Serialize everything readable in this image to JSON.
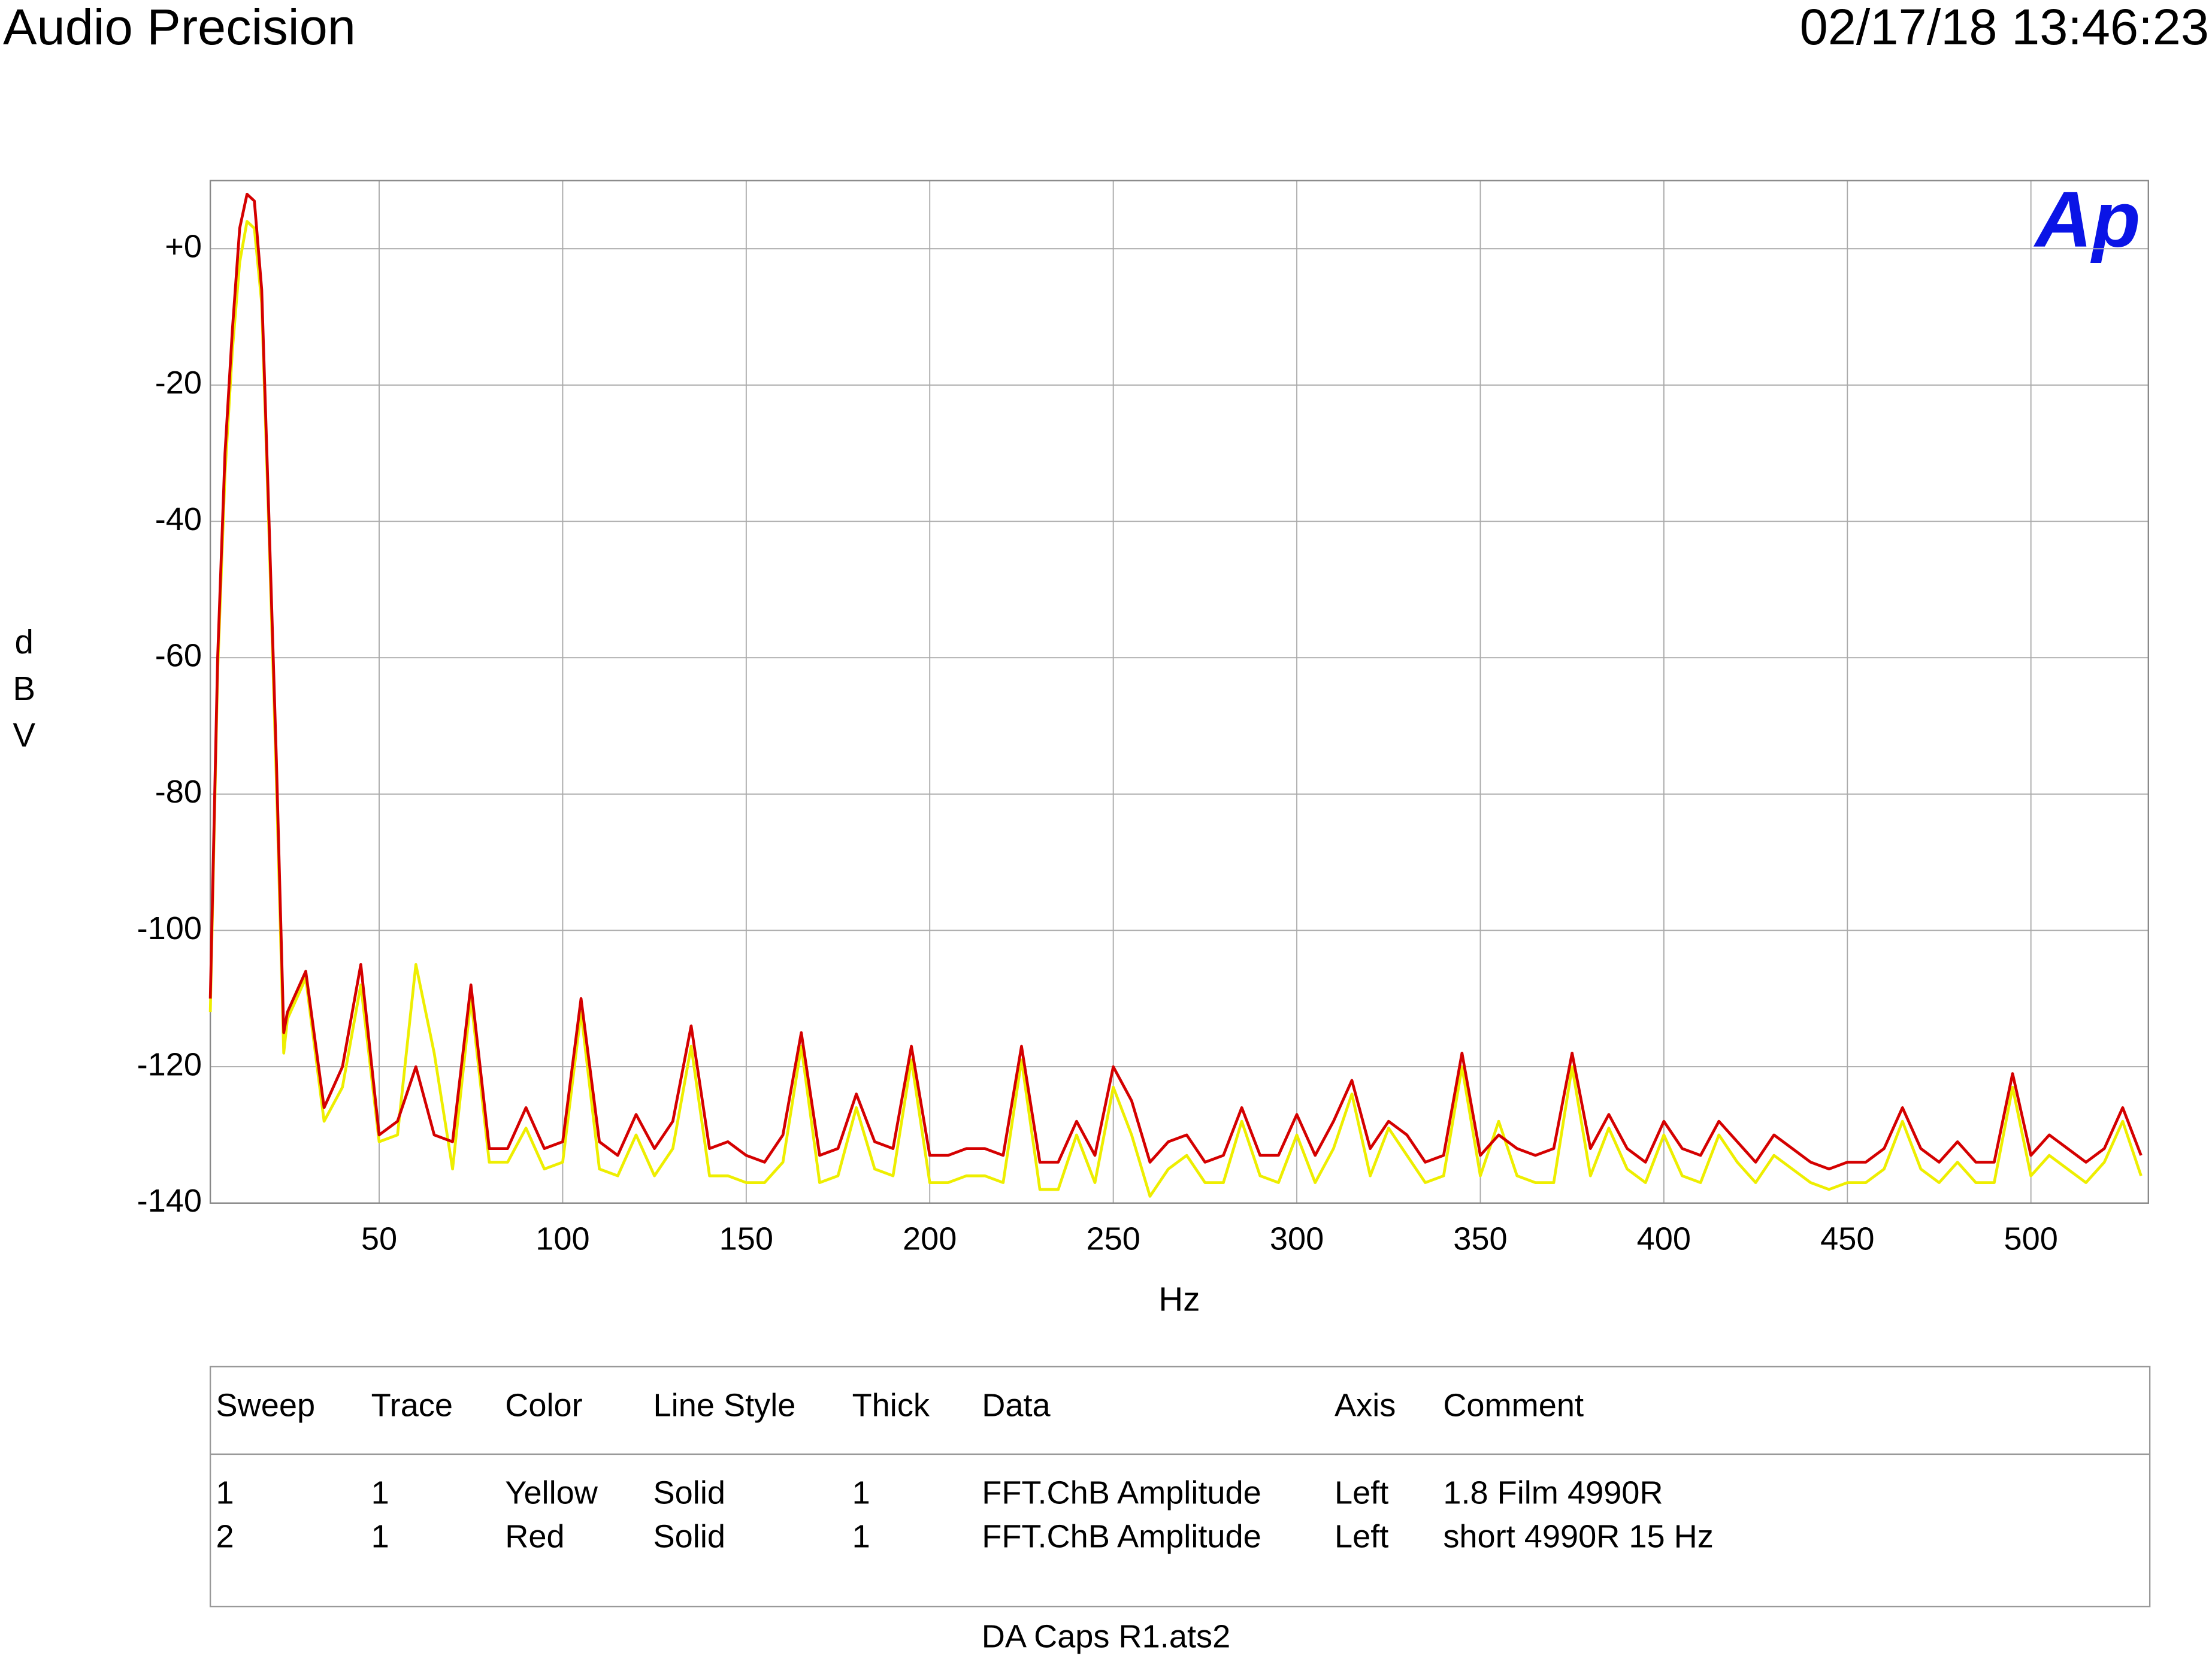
{
  "header": {
    "title": "Audio Precision",
    "timestamp": "02/17/18 13:46:23",
    "logo": "Ap"
  },
  "chart_data": {
    "type": "line",
    "ylabel": "dBV",
    "xlabel": "Hz",
    "xlim": [
      4,
      532
    ],
    "ylim": [
      -140,
      10
    ],
    "xticks": [
      50,
      100,
      150,
      200,
      250,
      300,
      350,
      400,
      450,
      500
    ],
    "yticks": [
      -140,
      -120,
      -100,
      -80,
      -60,
      -40,
      -20,
      {
        "value": 0,
        "label": "+0"
      }
    ],
    "grid": true,
    "x": [
      4,
      6,
      8,
      10,
      12,
      14,
      16,
      18,
      20,
      22,
      24,
      25,
      30,
      35,
      40,
      45,
      50,
      55,
      60,
      65,
      70,
      75,
      80,
      85,
      90,
      95,
      100,
      105,
      110,
      115,
      120,
      125,
      130,
      135,
      140,
      145,
      150,
      155,
      160,
      165,
      170,
      175,
      180,
      185,
      190,
      195,
      200,
      205,
      210,
      215,
      220,
      225,
      230,
      235,
      240,
      245,
      250,
      255,
      260,
      265,
      270,
      275,
      280,
      285,
      290,
      295,
      300,
      305,
      310,
      315,
      320,
      325,
      330,
      335,
      340,
      345,
      350,
      355,
      360,
      365,
      370,
      375,
      380,
      385,
      390,
      395,
      400,
      405,
      410,
      415,
      420,
      425,
      430,
      435,
      440,
      445,
      450,
      455,
      460,
      465,
      470,
      475,
      480,
      485,
      490,
      495,
      500,
      505,
      510,
      515,
      520,
      525,
      530
    ],
    "series": [
      {
        "color": "#eeee00",
        "values": [
          -112,
          -62,
          -33,
          -15,
          -2,
          4,
          3,
          -8,
          -42,
          -78,
          -118,
          -113,
          -107,
          -128,
          -123,
          -108,
          -131,
          -130,
          -105,
          -118,
          -135,
          -110,
          -134,
          -134,
          -129,
          -135,
          -134,
          -112,
          -135,
          -136,
          -130,
          -136,
          -132,
          -117,
          -136,
          -136,
          -137,
          -137,
          -134,
          -117,
          -137,
          -136,
          -126,
          -135,
          -136,
          -119,
          -137,
          -137,
          -136,
          -136,
          -137,
          -119,
          -138,
          -138,
          -130,
          -137,
          -123,
          -130,
          -139,
          -135,
          -133,
          -137,
          -137,
          -128,
          -136,
          -137,
          -130,
          -137,
          -132,
          -124,
          -136,
          -129,
          -133,
          -137,
          -136,
          -120,
          -136,
          -128,
          -136,
          -137,
          -137,
          -120,
          -136,
          -129,
          -135,
          -137,
          -130,
          -136,
          -137,
          -130,
          -134,
          -137,
          -133,
          -135,
          -137,
          -138,
          -137,
          -137,
          -135,
          -128,
          -135,
          -137,
          -134,
          -137,
          -137,
          -123,
          -136,
          -133,
          -135,
          -137,
          -134,
          -128,
          -136
        ]
      },
      {
        "color": "#d40000",
        "values": [
          -110,
          -60,
          -30,
          -12,
          3,
          8,
          7,
          -6,
          -40,
          -75,
          -115,
          -112,
          -106,
          -126,
          -120,
          -105,
          -130,
          -128,
          -120,
          -130,
          -131,
          -108,
          -132,
          -132,
          -126,
          -132,
          -131,
          -110,
          -131,
          -133,
          -127,
          -132,
          -128,
          -114,
          -132,
          -131,
          -133,
          -134,
          -130,
          -115,
          -133,
          -132,
          -124,
          -131,
          -132,
          -117,
          -133,
          -133,
          -132,
          -132,
          -133,
          -117,
          -134,
          -134,
          -128,
          -133,
          -120,
          -125,
          -134,
          -131,
          -130,
          -134,
          -133,
          -126,
          -133,
          -133,
          -127,
          -133,
          -128,
          -122,
          -132,
          -128,
          -130,
          -134,
          -133,
          -118,
          -133,
          -130,
          -132,
          -133,
          -132,
          -118,
          -132,
          -127,
          -132,
          -134,
          -128,
          -132,
          -133,
          -128,
          -131,
          -134,
          -130,
          -132,
          -134,
          -135,
          -134,
          -134,
          -132,
          -126,
          -132,
          -134,
          -131,
          -134,
          -134,
          -121,
          -133,
          -130,
          -132,
          -134,
          -132,
          -126,
          -133
        ]
      }
    ]
  },
  "table": {
    "columns": [
      "Sweep",
      "Trace",
      "Color",
      "Line Style",
      "Thick",
      "Data",
      "Axis",
      "Comment"
    ],
    "rows": [
      [
        "1",
        "1",
        "Yellow",
        "Solid",
        "1",
        "FFT.ChB Amplitude",
        "Left",
        "1.8 Film 4990R"
      ],
      [
        "2",
        "1",
        "Red",
        "Solid",
        "1",
        "FFT.ChB Amplitude",
        "Left",
        "short 4990R 15 Hz"
      ]
    ]
  },
  "footer": "DA Caps R1.ats2"
}
